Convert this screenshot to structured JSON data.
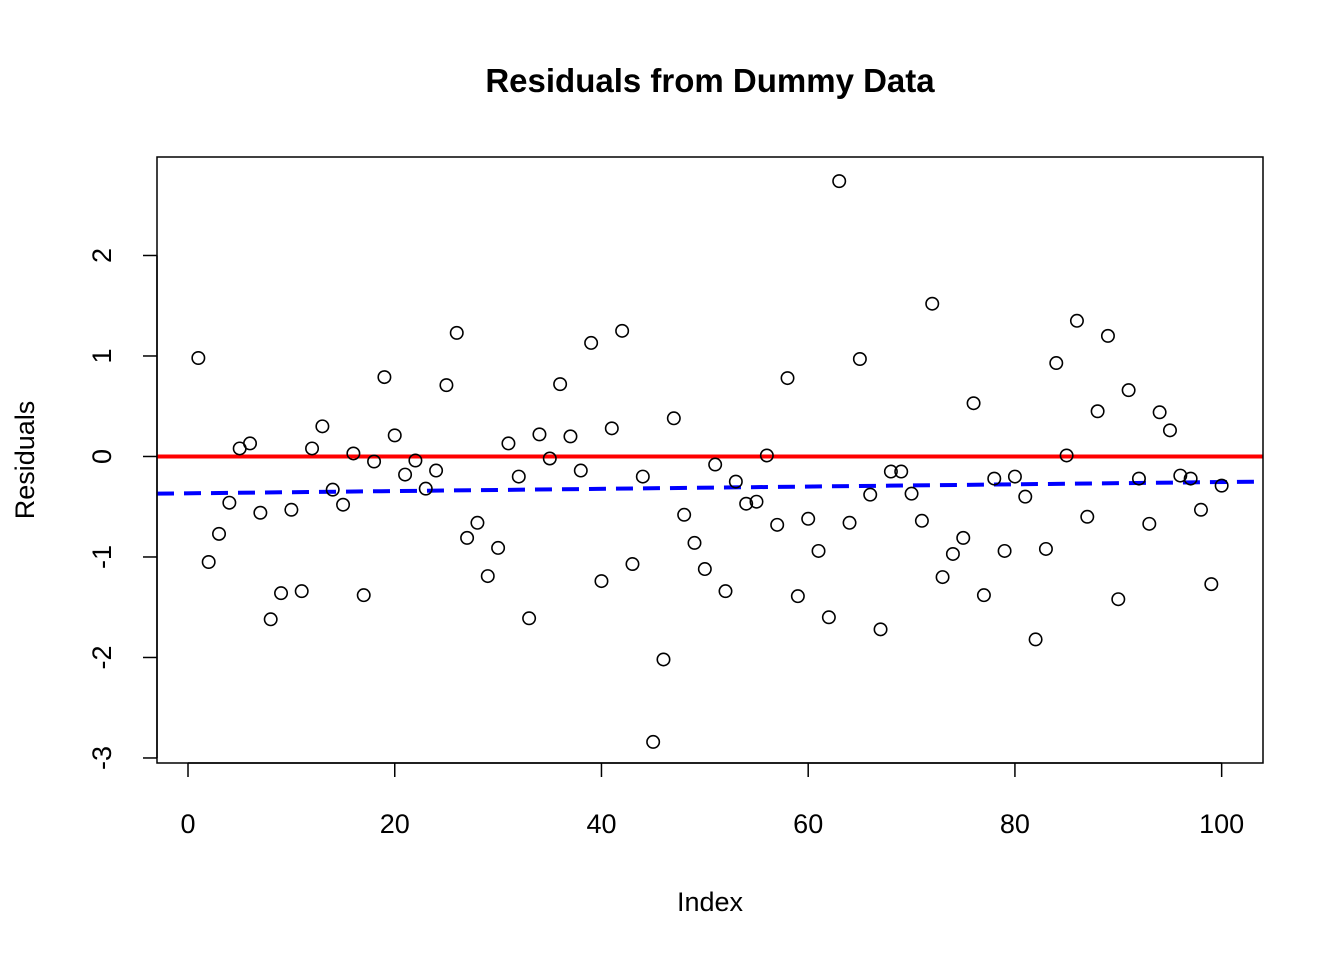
{
  "chart_data": {
    "type": "scatter",
    "title": "Residuals from Dummy Data",
    "xlabel": "Index",
    "ylabel": "Residuals",
    "xlim": [
      -3,
      104
    ],
    "ylim": [
      -3.05,
      2.98
    ],
    "x_ticks": [
      0,
      20,
      40,
      60,
      80,
      100
    ],
    "y_ticks": [
      -3,
      -2,
      -1,
      0,
      1,
      2
    ],
    "grid": false,
    "legend": "none",
    "point_color": "#000000",
    "zero_line": {
      "y": 0,
      "color": "#ff0000"
    },
    "trend_line": {
      "x": [
        -3,
        104
      ],
      "y": [
        -0.37,
        -0.25
      ],
      "color": "#0000ff",
      "style": "dashed"
    },
    "x": [
      1,
      2,
      3,
      4,
      5,
      6,
      7,
      8,
      9,
      10,
      11,
      12,
      13,
      14,
      15,
      16,
      17,
      18,
      19,
      20,
      21,
      22,
      23,
      24,
      25,
      26,
      27,
      28,
      29,
      30,
      31,
      32,
      33,
      34,
      35,
      36,
      37,
      38,
      39,
      40,
      41,
      42,
      43,
      44,
      45,
      46,
      47,
      48,
      49,
      50,
      51,
      52,
      53,
      54,
      55,
      56,
      57,
      58,
      59,
      60,
      61,
      62,
      63,
      64,
      65,
      66,
      67,
      68,
      69,
      70,
      71,
      72,
      73,
      74,
      75,
      76,
      77,
      78,
      79,
      80,
      81,
      82,
      83,
      84,
      85,
      86,
      87,
      88,
      89,
      90,
      91,
      92,
      93,
      94,
      95,
      96,
      97,
      98,
      99,
      100
    ],
    "y": [
      0.98,
      -1.05,
      -0.77,
      -0.46,
      0.08,
      0.13,
      -0.56,
      -1.62,
      -1.36,
      -0.53,
      -1.34,
      0.08,
      0.3,
      -0.33,
      -0.48,
      0.03,
      -1.38,
      -0.05,
      0.79,
      0.21,
      -0.18,
      -0.04,
      -0.32,
      -0.14,
      0.71,
      1.23,
      -0.81,
      -0.66,
      -1.19,
      -0.91,
      0.13,
      -0.2,
      -1.61,
      0.22,
      -0.02,
      0.72,
      0.2,
      -0.14,
      1.13,
      -1.24,
      0.28,
      1.25,
      -1.07,
      -0.2,
      -2.84,
      -2.02,
      0.38,
      -0.58,
      -0.86,
      -1.12,
      -0.08,
      -1.34,
      -0.25,
      -0.47,
      -0.45,
      0.01,
      -0.68,
      0.78,
      -1.39,
      -0.62,
      -0.94,
      -1.6,
      2.74,
      -0.66,
      0.97,
      -0.38,
      -1.72,
      -0.15,
      -0.15,
      -0.37,
      -0.64,
      1.52,
      -1.2,
      -0.97,
      -0.81,
      0.53,
      -1.38,
      -0.22,
      -0.94,
      -0.2,
      -0.4,
      -1.82,
      -0.92,
      0.93,
      0.01,
      1.35,
      -0.6,
      0.45,
      1.2,
      -1.42,
      0.66,
      -0.22,
      -0.67,
      0.44,
      0.26,
      -0.19,
      -0.22,
      -0.53,
      -1.27,
      -0.29
    ]
  }
}
